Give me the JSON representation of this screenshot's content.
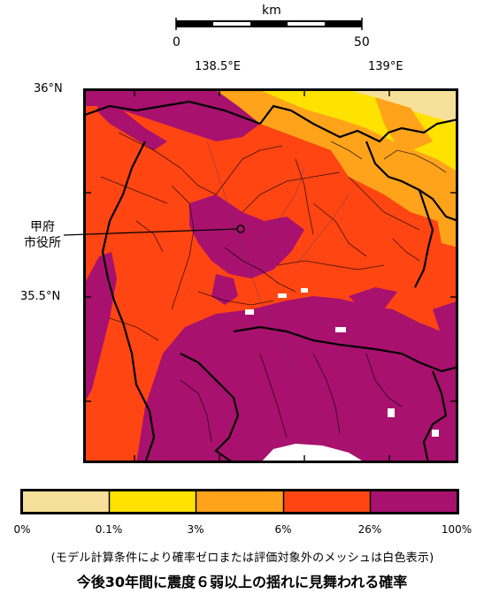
{
  "scale": {
    "unit": "km",
    "start": "0",
    "end": "50"
  },
  "axes": {
    "lon_labels": [
      "138.5°E",
      "139°E"
    ],
    "lat_labels": [
      "36°N",
      "35.5°N"
    ]
  },
  "city": {
    "label_line1": "甲府",
    "label_line2": "市役所"
  },
  "legend": {
    "bins": [
      {
        "range": "0% – 0.1%",
        "color": "#f7e19a"
      },
      {
        "range": "0.1% – 3%",
        "color": "#ffe200"
      },
      {
        "range": "3% – 6%",
        "color": "#ffa31a"
      },
      {
        "range": "6% – 26%",
        "color": "#ff4512"
      },
      {
        "range": "26% – 100%",
        "color": "#a8116e"
      }
    ],
    "ticks": [
      "0%",
      "0.1%",
      "3%",
      "6%",
      "26%",
      "100%"
    ]
  },
  "note": "(モデル計算条件により確率ゼロまたは評価対象外のメッシュは白色表示)",
  "title": "今後30年間に震度６弱以上の揺れに見舞われる確率",
  "colors": {
    "purple": "#a8116e",
    "red": "#ff4512",
    "orange": "#ffa31a",
    "yellow": "#ffe200",
    "pale": "#f7e19a"
  }
}
